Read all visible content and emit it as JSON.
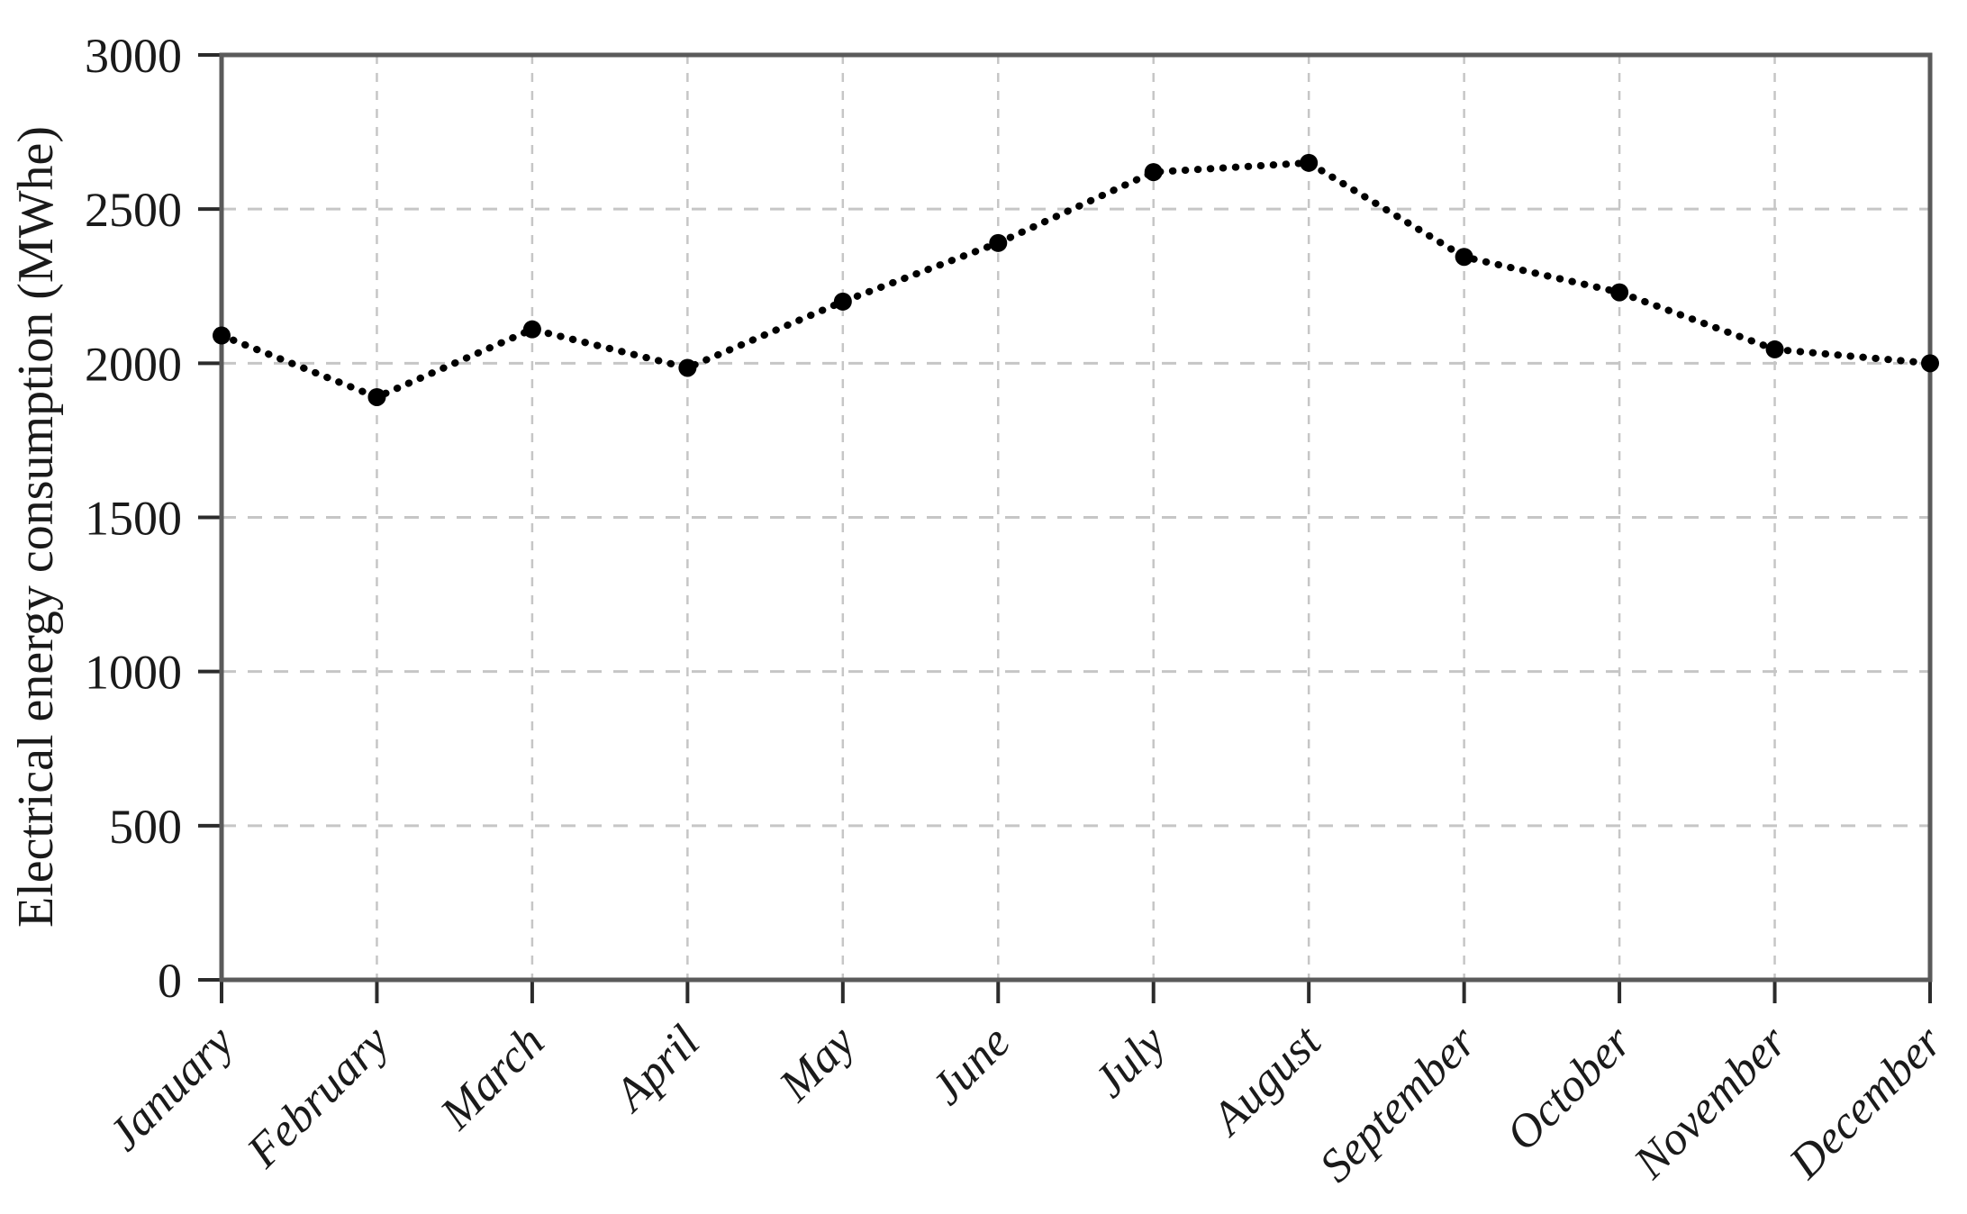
{
  "chart_data": {
    "type": "line",
    "title": "",
    "xlabel": "",
    "ylabel": "Electrical energy consumption (MWhe)",
    "categories": [
      "January",
      "February",
      "March",
      "April",
      "May",
      "June",
      "July",
      "August",
      "September",
      "October",
      "November",
      "December"
    ],
    "series": [
      {
        "name": "Electrical energy consumption",
        "values": [
          2090,
          1890,
          2110,
          1985,
          2200,
          2390,
          2620,
          2650,
          2345,
          2230,
          2045,
          2000
        ]
      }
    ],
    "ylim": [
      0,
      3000
    ],
    "yticks": [
      0,
      500,
      1000,
      1500,
      2000,
      2500,
      3000
    ],
    "grid": {
      "horizontal": true,
      "vertical": true,
      "style": "dashed"
    },
    "legend_position": "none",
    "line_style": "dotted",
    "marker": "filled-circle",
    "x_label_rotation_deg": -45,
    "colors": {
      "line": "#000000",
      "marker": "#000000",
      "grid": "#c6c6c6",
      "axis_box": "#5a5a5a",
      "tick_mark": "#2b2b2b",
      "text": "#1a1a1a",
      "background": "#ffffff"
    }
  }
}
